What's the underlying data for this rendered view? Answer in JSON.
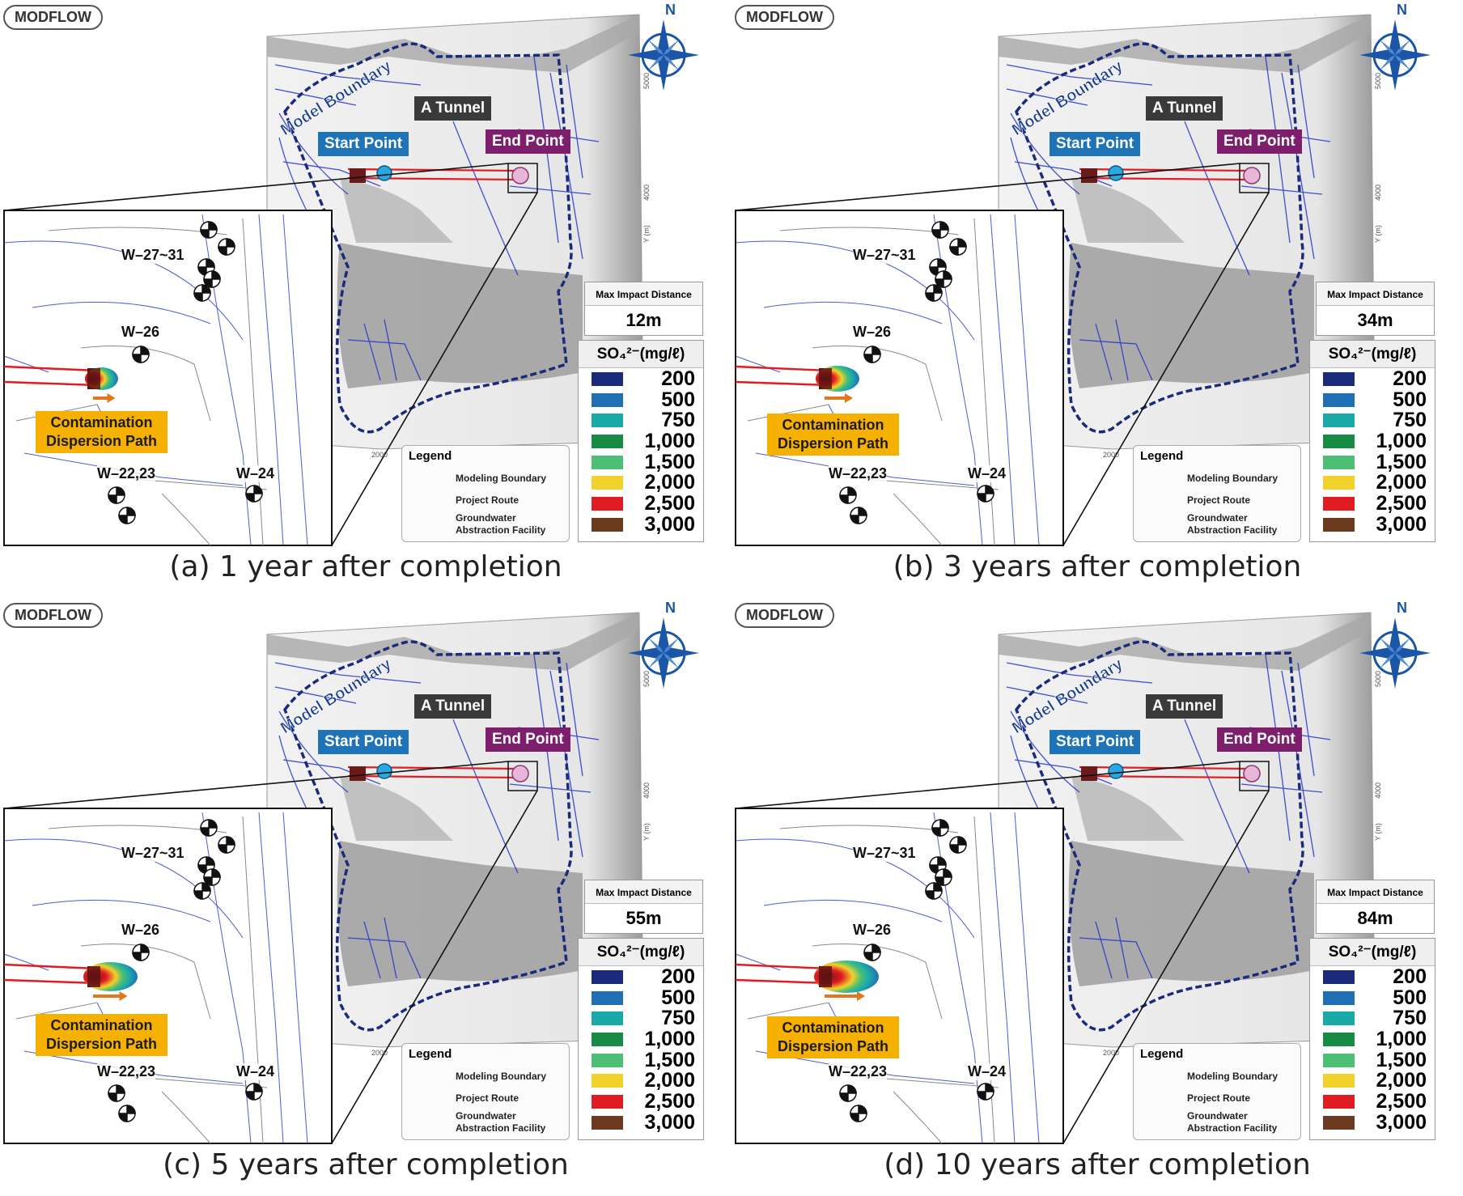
{
  "panels": [
    {
      "caption": "(a) 1 year after completion",
      "max_impact_value": "12m",
      "plume_scale": 0.25
    },
    {
      "caption": "(b) 3 years after completion",
      "max_impact_value": "34m",
      "plume_scale": 0.5
    },
    {
      "caption": "(c) 5 years after completion",
      "max_impact_value": "55m",
      "plume_scale": 0.75
    },
    {
      "caption": "(d) 10 years after completion",
      "max_impact_value": "84m",
      "plume_scale": 1.0
    }
  ],
  "shared": {
    "model_badge": "MODFLOW",
    "compass_letter": "N",
    "model_boundary_label": "Model Boundary",
    "tunnel_label": "A Tunnel",
    "start_label": "Start Point",
    "end_label": "End Point",
    "max_impact_title": "Max Impact Distance",
    "concentration_title": "SO₄²⁻(mg/ℓ)",
    "concentration_scale": [
      {
        "value": "200",
        "color": "#1b2a7a"
      },
      {
        "value": "500",
        "color": "#1f6fb5"
      },
      {
        "value": "750",
        "color": "#19aaa8"
      },
      {
        "value": "1,000",
        "color": "#178a43"
      },
      {
        "value": "1,500",
        "color": "#4cbf75"
      },
      {
        "value": "2,000",
        "color": "#f2d12a"
      },
      {
        "value": "2,500",
        "color": "#e11b22"
      },
      {
        "value": "3,000",
        "color": "#6b3a1f"
      }
    ],
    "legend_title": "Legend",
    "legend_modeling_boundary": "Modeling Boundary",
    "legend_project_route": "Project Route",
    "legend_groundwater_line1": "Groundwater",
    "legend_groundwater_line2": "Abstraction Facility",
    "well_labels": {
      "w27": "W–27~31",
      "w26": "W–26",
      "w22": "W–22,23",
      "w24": "W–24"
    },
    "contamination_line1": "Contamination",
    "contamination_line2": "Dispersion Path",
    "axis_tick_x": "2000",
    "axis_tick_y1": "4000",
    "axis_tick_y2": "5000",
    "axis_label_y": "Y (m)"
  }
}
